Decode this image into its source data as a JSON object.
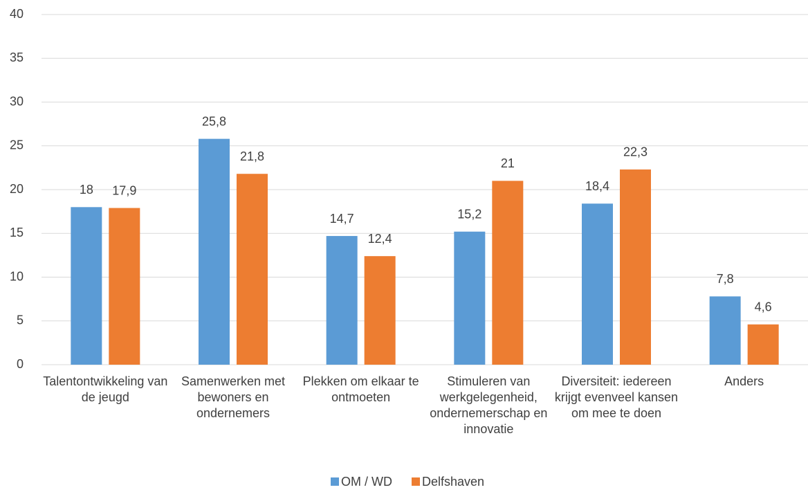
{
  "chart_data": {
    "type": "bar",
    "categories": [
      "Talentontwikkeling van de jeugd",
      "Samenwerken met bewoners en ondernemers",
      "Plekken om elkaar te ontmoeten",
      "Stimuleren van werkgelegenheid, ondernemerschap en innovatie",
      "Diversiteit: iedereen krijgt evenveel kansen om mee te doen",
      "Anders"
    ],
    "series": [
      {
        "name": "OM / WD",
        "color": "#5b9bd5",
        "values": [
          18,
          25.8,
          14.7,
          15.2,
          18.4,
          7.8
        ],
        "value_labels": [
          "18",
          "25,8",
          "14,7",
          "15,2",
          "18,4",
          "7,8"
        ]
      },
      {
        "name": "Delfshaven",
        "color": "#ed7d31",
        "values": [
          17.9,
          21.8,
          12.4,
          21,
          22.3,
          4.6
        ],
        "value_labels": [
          "17,9",
          "21,8",
          "12,4",
          "21",
          "22,3",
          "4,6"
        ]
      }
    ],
    "ylim": [
      0,
      40
    ],
    "yticks": [
      0,
      5,
      10,
      15,
      20,
      25,
      30,
      35,
      40
    ],
    "grid": true,
    "legend": "bottom"
  }
}
